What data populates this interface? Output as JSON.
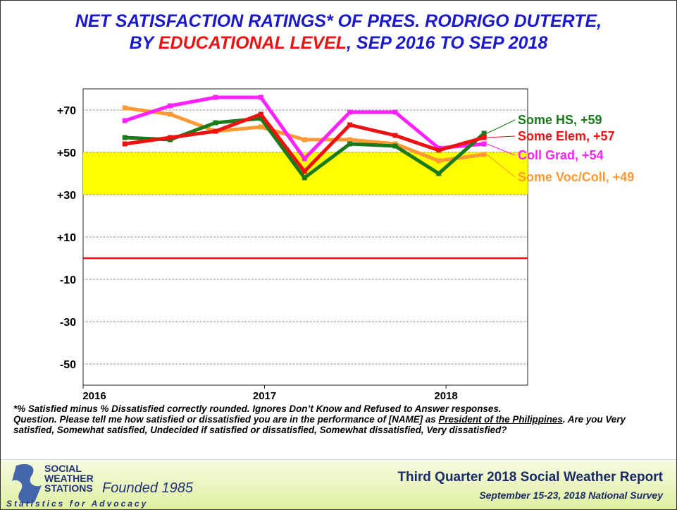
{
  "chart_data": {
    "type": "line",
    "title": [
      "NET SATISFACTION RATINGS* OF PRES. RODRIGO DUTERTE,",
      "BY ",
      "EDUCATIONAL LEVEL",
      ", SEP 2016 TO SEP 2018"
    ],
    "x": [
      2016.23,
      2016.48,
      2016.73,
      2016.98,
      2017.22,
      2017.47,
      2017.72,
      2017.96,
      2018.21
    ],
    "xlim": [
      2016,
      2018.45
    ],
    "xticks": [
      2016,
      2017,
      2018
    ],
    "ylim": [
      -60,
      80
    ],
    "yticks": [
      {
        "value": 70,
        "label": "+70"
      },
      {
        "value": 50,
        "label": "+50"
      },
      {
        "value": 30,
        "label": "+30"
      },
      {
        "value": 10,
        "label": "+10"
      },
      -10,
      -30,
      -50
    ],
    "grid": true,
    "band": {
      "from": 30,
      "to": 50,
      "color": "#ffff00"
    },
    "zero_line_color": "#ee1111",
    "series": [
      {
        "name": "Some Voc/Coll, +49",
        "color": "#ff9933",
        "values": [
          71,
          68,
          60,
          62,
          56,
          56,
          54,
          46,
          49
        ]
      },
      {
        "name": "Coll Grad, +54",
        "color": "#ff22ff",
        "values": [
          65,
          72,
          76,
          76,
          47,
          69,
          69,
          52,
          54
        ]
      },
      {
        "name": "Some HS, +59",
        "color": "#1a7a1a",
        "values": [
          57,
          56,
          64,
          66,
          38,
          54,
          53,
          40,
          59
        ]
      },
      {
        "name": "Some Elem, +57",
        "color": "#ee1111",
        "values": [
          54,
          57,
          60,
          68,
          41,
          63,
          58,
          51,
          57
        ]
      }
    ],
    "footnote": [
      "*% Satisfied minus % Dissatisfied correctly rounded. Ignores Don’t Know and Refused to Answer responses.",
      "Question. Please tell me how satisfied or dissatisfied you are in the performance of [NAME] as ",
      "President of the Philippines",
      ". Are you Very satisfied, Somewhat satisfied, Undecided if satisfied or dissatisfied, Somewhat dissatisfied, Very dissatisfied?"
    ],
    "logo": [
      "SOCIAL",
      "WEATHER",
      "STATIONS",
      "Founded 1985",
      "Statistics for Advocacy"
    ],
    "report": "Third Quarter 2018 Social Weather Report",
    "survey": "September 15-23, 2018 National Survey"
  }
}
